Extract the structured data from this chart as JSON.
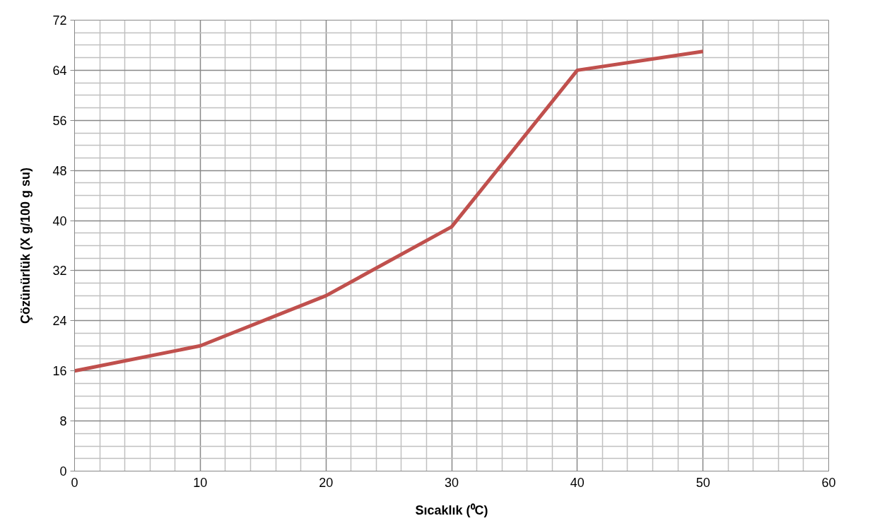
{
  "chart_data": {
    "type": "line",
    "xlabel": "Sıcaklık (⁰C)",
    "ylabel": "Çözünürlük (X g/100 g su)",
    "x": [
      0,
      10,
      20,
      30,
      40,
      50
    ],
    "series": [
      {
        "color": "#c0504d",
        "values": [
          16,
          20,
          28,
          39,
          64,
          67
        ]
      }
    ],
    "xlim": [
      0,
      60
    ],
    "xticks": [
      0,
      10,
      20,
      30,
      40,
      50,
      60
    ],
    "ylim": [
      0,
      72
    ],
    "yticks": [
      0,
      8,
      16,
      24,
      32,
      40,
      48,
      56,
      64,
      72
    ],
    "grid": true,
    "marker": "none",
    "line_style": "solid"
  }
}
